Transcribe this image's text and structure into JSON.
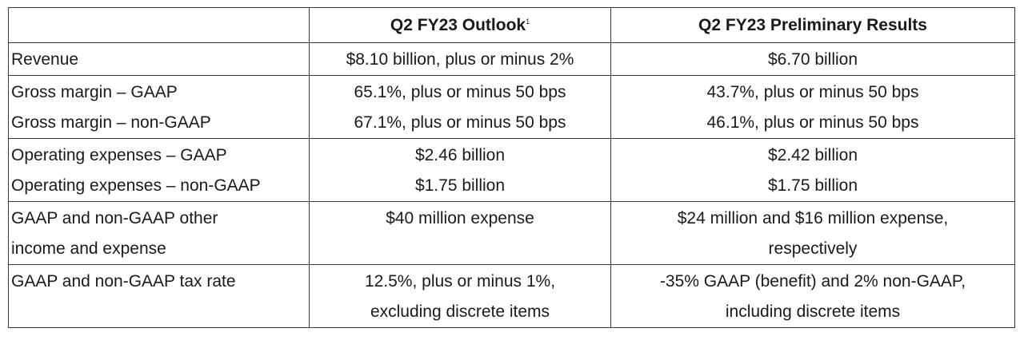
{
  "table": {
    "headers": [
      "",
      "Q2 FY23 Outlook",
      "Q2 FY23 Preliminary Results"
    ],
    "header_footnote": "1",
    "rows": [
      {
        "label": [
          "Revenue"
        ],
        "outlook": [
          "$8.10 billion, plus or minus 2%"
        ],
        "results": [
          "$6.70 billion"
        ]
      },
      {
        "label": [
          "Gross margin – GAAP",
          "Gross margin – non-GAAP"
        ],
        "outlook": [
          "65.1%, plus or minus 50 bps",
          "67.1%, plus or minus 50 bps"
        ],
        "results": [
          "43.7%, plus or minus 50 bps",
          "46.1%, plus or minus 50 bps"
        ]
      },
      {
        "label": [
          "Operating expenses – GAAP",
          "Operating expenses – non-GAAP"
        ],
        "outlook": [
          "$2.46 billion",
          "$1.75 billion"
        ],
        "results": [
          "$2.42 billion",
          "$1.75 billion"
        ]
      },
      {
        "label": [
          "GAAP and non-GAAP other",
          "income and expense"
        ],
        "outlook": [
          "$40 million expense"
        ],
        "results": [
          "$24 million and $16 million expense,",
          "respectively"
        ]
      },
      {
        "label": [
          "GAAP and non-GAAP tax rate"
        ],
        "outlook": [
          "12.5%, plus or minus 1%,",
          "excluding discrete items"
        ],
        "results": [
          "-35% GAAP (benefit) and 2% non-GAAP,",
          "including discrete items"
        ]
      }
    ]
  }
}
